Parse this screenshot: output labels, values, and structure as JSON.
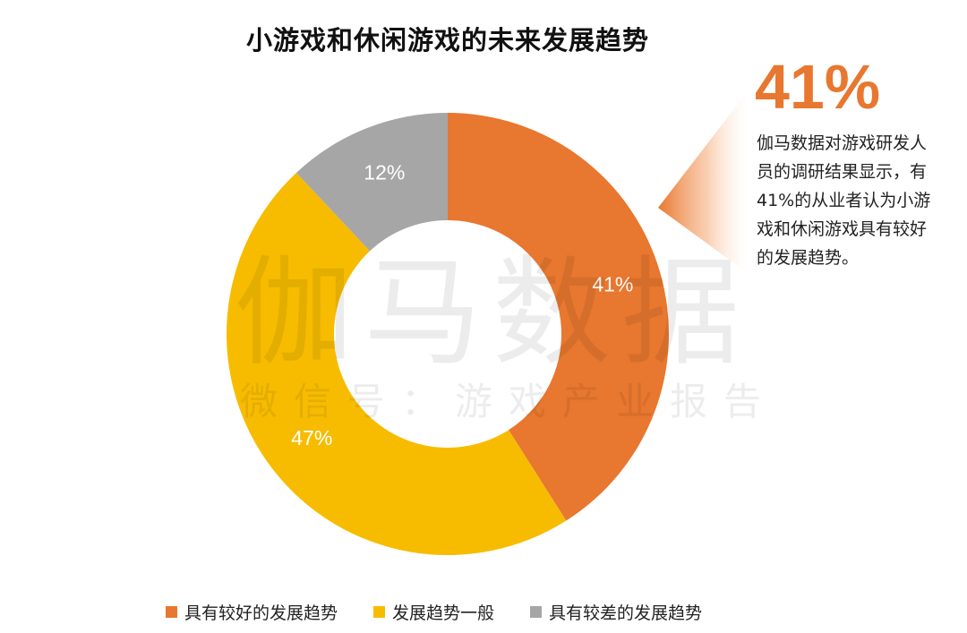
{
  "chart_data": {
    "type": "pie",
    "title": "小游戏和休闲游戏的未来发展趋势",
    "categories": [
      "具有较好的发展趋势",
      "发展趋势一般",
      "具有较差的发展趋势"
    ],
    "values": [
      41,
      47,
      12
    ],
    "labels": [
      "41%",
      "47%",
      "12%"
    ],
    "colors": [
      "#e8772f",
      "#f7bc00",
      "#a6a6a6"
    ],
    "donut": true,
    "legend_position": "bottom"
  },
  "watermark": {
    "main": "伽马数据",
    "sub": "微信号：游戏产业报告"
  },
  "callout": {
    "value": "41%",
    "text": "伽马数据对游戏研发人员的调研结果显示，有41%的从业者认为小游戏和休闲游戏具有较好的发展趋势。"
  }
}
